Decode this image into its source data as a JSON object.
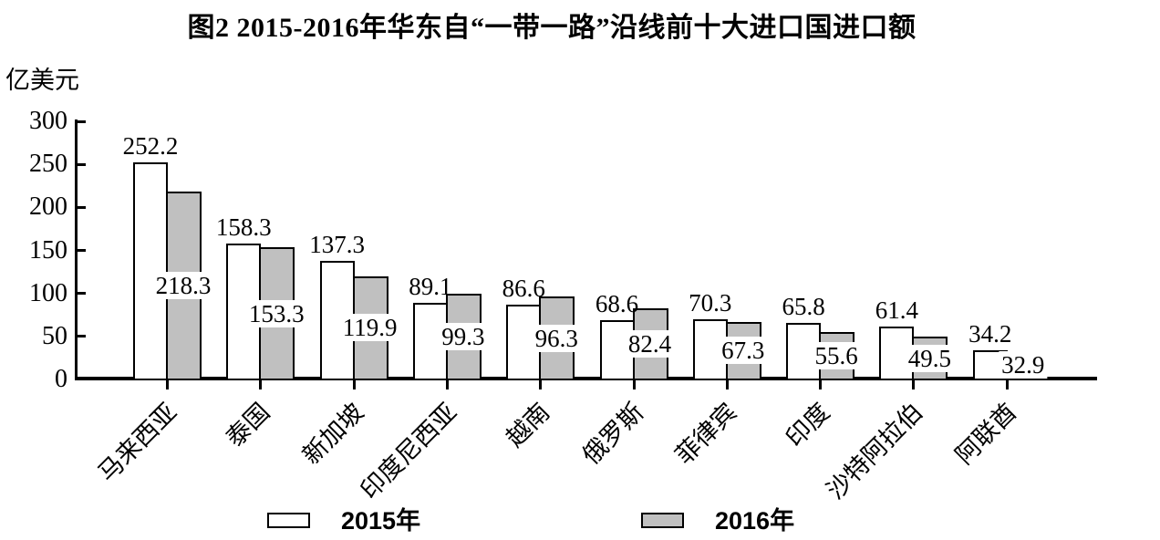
{
  "chart_data": {
    "type": "bar",
    "title": "图2 2015-2016年华东自“一带一路”沿线前十大进口国进口额",
    "ylabel": "亿美元",
    "xlabel": "",
    "ylim": [
      0,
      300
    ],
    "yticks": [
      0,
      50,
      100,
      150,
      200,
      250,
      300
    ],
    "grid": false,
    "legend_position": "bottom",
    "bar_outline_color": "#000000",
    "categories": [
      "马来西亚",
      "泰国",
      "新加坡",
      "印度尼西亚",
      "越南",
      "俄罗斯",
      "菲律宾",
      "印度",
      "沙特阿拉伯",
      "阿联酋"
    ],
    "series": [
      {
        "name": "2015年",
        "color": "#ffffff",
        "values": [
          252.2,
          158.3,
          137.3,
          89.1,
          86.6,
          68.6,
          70.3,
          65.8,
          61.4,
          34.2
        ]
      },
      {
        "name": "2016年",
        "color": "#c0c0c0",
        "values": [
          218.3,
          153.3,
          119.9,
          99.3,
          96.3,
          82.4,
          67.3,
          55.6,
          49.5,
          32.9
        ]
      }
    ]
  }
}
